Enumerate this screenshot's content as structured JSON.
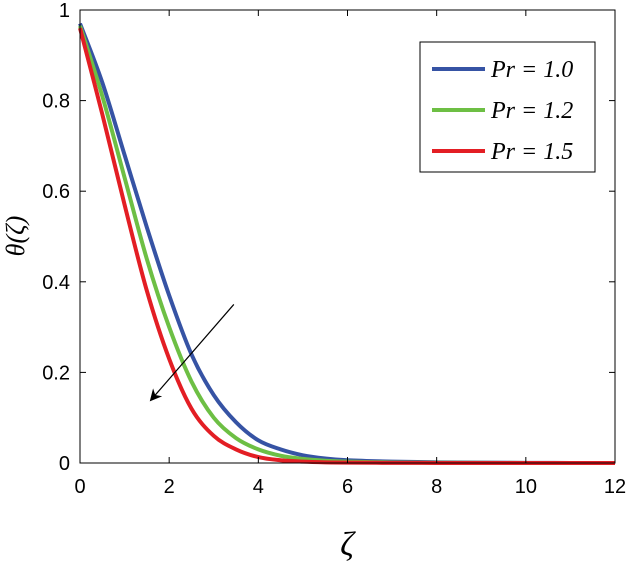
{
  "chart_data": {
    "type": "line",
    "xlabel": "ζ",
    "ylabel": "θ(ζ)",
    "xlim": [
      0,
      12
    ],
    "ylim": [
      0,
      1
    ],
    "xticks": [
      0,
      2,
      4,
      6,
      8,
      10,
      12
    ],
    "yticks": [
      0,
      0.2,
      0.4,
      0.6,
      0.8,
      1
    ],
    "xtick_labels": [
      "0",
      "2",
      "4",
      "6",
      "8",
      "10",
      "12"
    ],
    "ytick_labels": [
      "0",
      "0.2",
      "0.4",
      "0.6",
      "0.8",
      "1"
    ],
    "grid": false,
    "legend_position": "top-right",
    "annotation": "arrow pointing down-left across curves (increasing Pr)",
    "annotation_arrow": {
      "from": [
        3.45,
        0.35
      ],
      "to": [
        1.6,
        0.14
      ]
    },
    "x": [
      0,
      0.5,
      1,
      1.5,
      2,
      2.5,
      3,
      3.5,
      4,
      4.5,
      5,
      5.5,
      6,
      7,
      8,
      9,
      10,
      11,
      12
    ],
    "series": [
      {
        "name": "Pr = 1.0",
        "color": "#3653a4",
        "values": [
          0.97,
          0.84,
          0.68,
          0.52,
          0.37,
          0.24,
          0.15,
          0.09,
          0.05,
          0.03,
          0.017,
          0.01,
          0.006,
          0.003,
          0.0015,
          0.0007,
          0.0003,
          0.0001,
          0
        ]
      },
      {
        "name": "Pr = 1.2",
        "color": "#6dbf44",
        "values": [
          0.965,
          0.81,
          0.63,
          0.45,
          0.3,
          0.18,
          0.1,
          0.055,
          0.03,
          0.016,
          0.009,
          0.005,
          0.003,
          0.0012,
          0.0005,
          0.0002,
          0.0001,
          0,
          0
        ]
      },
      {
        "name": "Pr = 1.5",
        "color": "#e31e24",
        "values": [
          0.96,
          0.77,
          0.57,
          0.38,
          0.23,
          0.12,
          0.06,
          0.03,
          0.013,
          0.006,
          0.003,
          0.0015,
          0.0008,
          0.0003,
          0.0001,
          0,
          0,
          0,
          0
        ]
      }
    ]
  }
}
